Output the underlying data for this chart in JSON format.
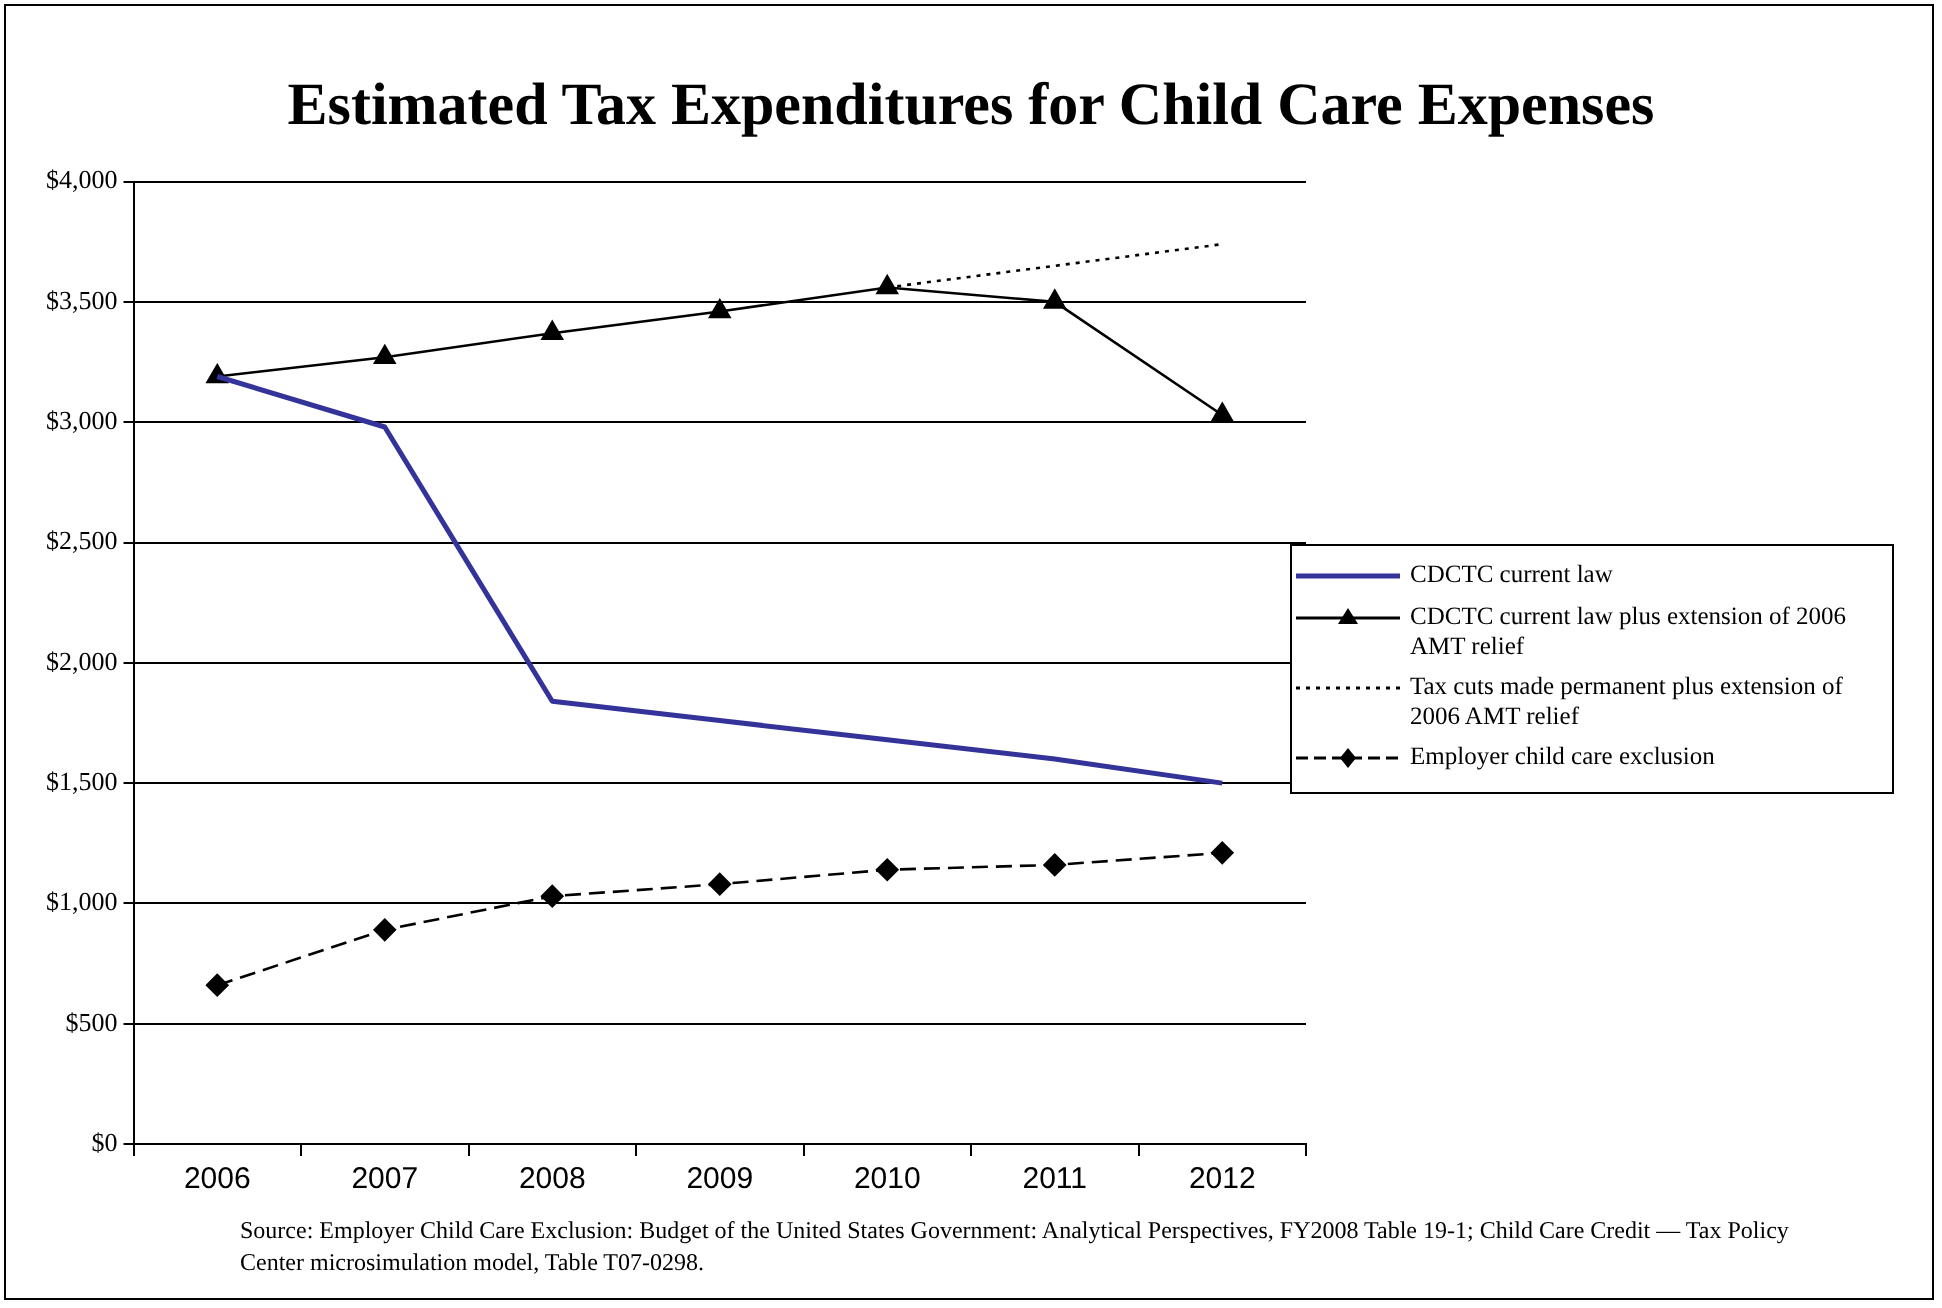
{
  "chart_data": {
    "type": "line",
    "title": "Estimated Tax Expenditures for Child Care Expenses",
    "categories": [
      "2006",
      "2007",
      "2008",
      "2009",
      "2010",
      "2011",
      "2012"
    ],
    "series": [
      {
        "name": "CDCTC current law",
        "color": "#333399",
        "marker": "none",
        "line_style": "solid",
        "values": [
          3190,
          2980,
          1840,
          1760,
          1680,
          1600,
          1500
        ]
      },
      {
        "name": "CDCTC current law plus extension of 2006 AMT relief",
        "color": "#000000",
        "marker": "triangle",
        "line_style": "solid",
        "values": [
          3190,
          3270,
          3370,
          3460,
          3560,
          3500,
          3030
        ]
      },
      {
        "name": "Tax cuts made permanent plus extension of 2006 AMT relief",
        "color": "#000000",
        "marker": "none",
        "line_style": "dotted",
        "values": [
          null,
          null,
          null,
          null,
          3560,
          3650,
          3740
        ]
      },
      {
        "name": "Employer child care exclusion",
        "color": "#000000",
        "marker": "diamond",
        "line_style": "dashed",
        "values": [
          660,
          890,
          1030,
          1080,
          1140,
          1160,
          1210
        ]
      }
    ],
    "ylim": [
      0,
      4000
    ],
    "yticks": [
      {
        "value": 0,
        "label": "$0"
      },
      {
        "value": 500,
        "label": "$500"
      },
      {
        "value": 1000,
        "label": "$1,000"
      },
      {
        "value": 1500,
        "label": "$1,500"
      },
      {
        "value": 2000,
        "label": "$2,000"
      },
      {
        "value": 2500,
        "label": "$2,500"
      },
      {
        "value": 3000,
        "label": "$3,000"
      },
      {
        "value": 3500,
        "label": "$3,500"
      },
      {
        "value": 4000,
        "label": "$4,000"
      }
    ],
    "grid": "y",
    "legend": "right",
    "annotations": [
      "Source: Employer Child Care Exclusion: Budget of the United States Government: Analytical Perspectives, FY2008 Table 19-1; Child Care Credit — Tax Policy Center microsimulation model, Table T07-0298."
    ]
  }
}
